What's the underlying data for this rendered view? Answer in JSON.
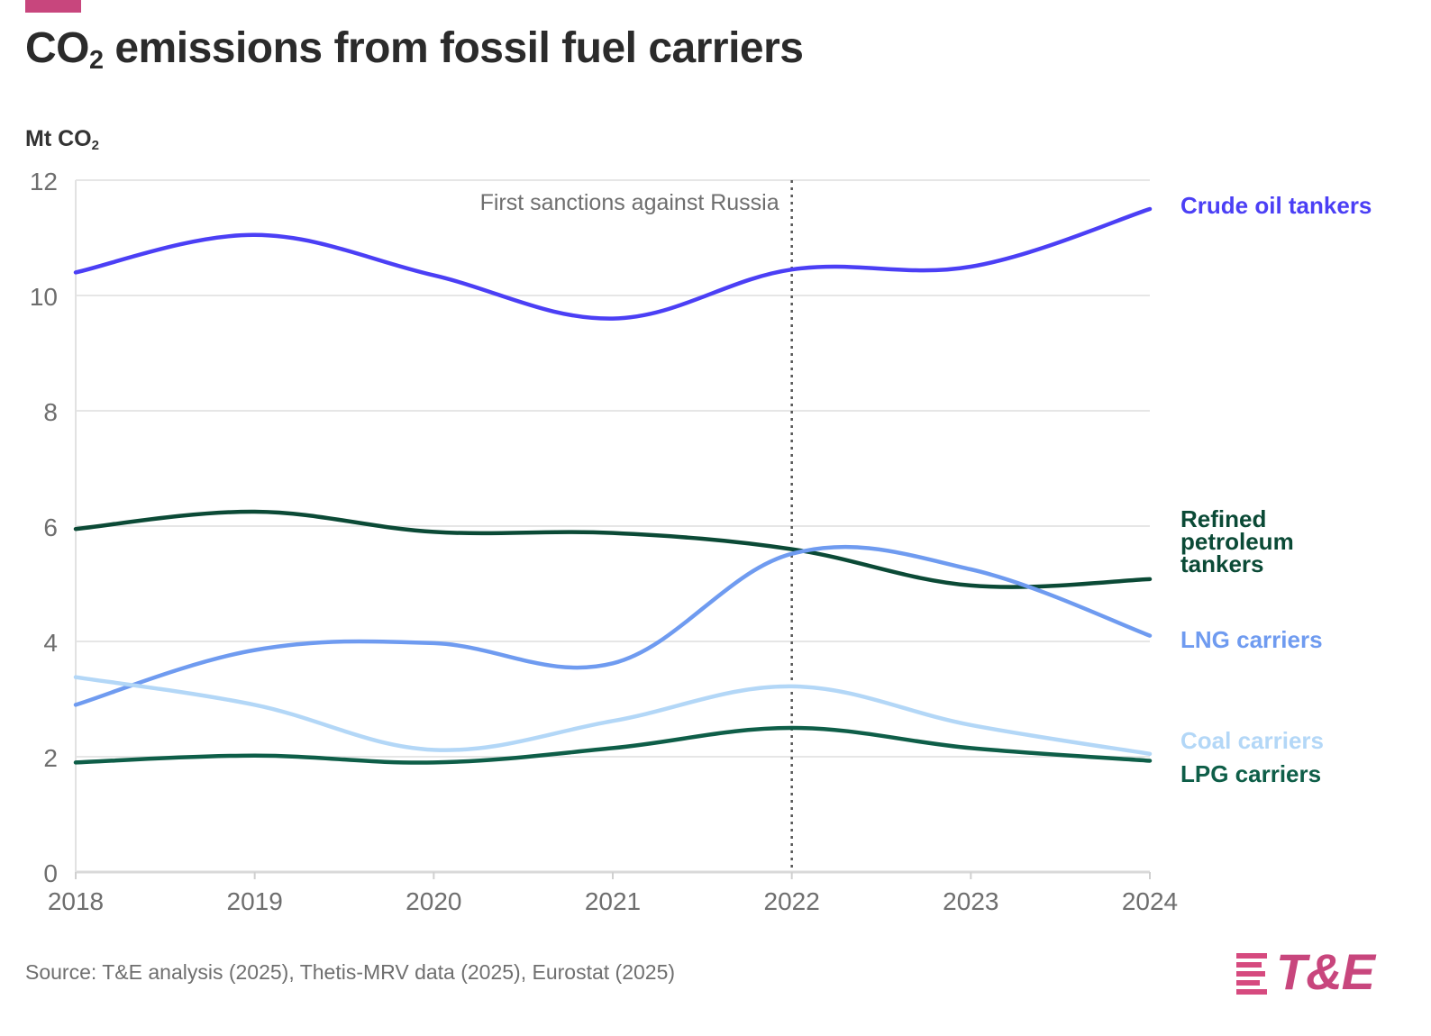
{
  "header": {
    "title_main": "CO",
    "title_sub": "2",
    "title_rest": " emissions from fossil fuel carriers",
    "accent_color": "#c8467d"
  },
  "unit_label": {
    "main": "Mt CO",
    "sub": "2"
  },
  "chart_data": {
    "type": "line",
    "title": "CO2 emissions from fossil fuel carriers",
    "ylabel": "Mt CO2",
    "xlabel": "",
    "x": [
      2018,
      2019,
      2020,
      2021,
      2022,
      2023,
      2024
    ],
    "x_tick_labels": [
      "2018",
      "2019",
      "2020",
      "2021",
      "2022",
      "2023",
      "2024"
    ],
    "ylim": [
      0,
      12
    ],
    "y_ticks": [
      0,
      2,
      4,
      6,
      8,
      10,
      12
    ],
    "y_tick_labels": [
      "0",
      "2",
      "4",
      "6",
      "8",
      "10",
      "12"
    ],
    "grid": true,
    "legend_placement": "right (direct labels)",
    "series": [
      {
        "name": "Crude oil tankers",
        "label_lines": [
          "Crude oil tankers"
        ],
        "color": "#4b3ff5",
        "values": [
          10.4,
          11.05,
          10.35,
          9.6,
          10.45,
          10.5,
          11.5
        ]
      },
      {
        "name": "Refined petroleum tankers",
        "label_lines": [
          "Refined",
          "petroleum",
          "tankers"
        ],
        "color": "#0b4a36",
        "values": [
          5.95,
          6.25,
          5.9,
          5.88,
          5.6,
          4.97,
          5.08
        ]
      },
      {
        "name": "LNG carriers",
        "label_lines": [
          "LNG carriers"
        ],
        "color": "#6f9bf0",
        "values": [
          2.9,
          3.85,
          3.97,
          3.62,
          5.52,
          5.25,
          4.1
        ]
      },
      {
        "name": "Coal carriers",
        "label_lines": [
          "Coal carriers"
        ],
        "color": "#b3d7f7",
        "values": [
          3.38,
          2.9,
          2.12,
          2.62,
          3.22,
          2.55,
          2.05
        ]
      },
      {
        "name": "LPG carriers",
        "label_lines": [
          "LPG carriers"
        ],
        "color": "#0e5e48",
        "values": [
          1.9,
          2.02,
          1.9,
          2.15,
          2.5,
          2.15,
          1.93
        ]
      }
    ],
    "annotations": [
      {
        "x": 2022,
        "text": "First sanctions against Russia",
        "style": "dotted vertical line"
      }
    ]
  },
  "footer": {
    "source": "Source: T&E analysis (2025), Thetis-MRV data (2025), Eurostat (2025)",
    "logo_text": "T&E"
  }
}
